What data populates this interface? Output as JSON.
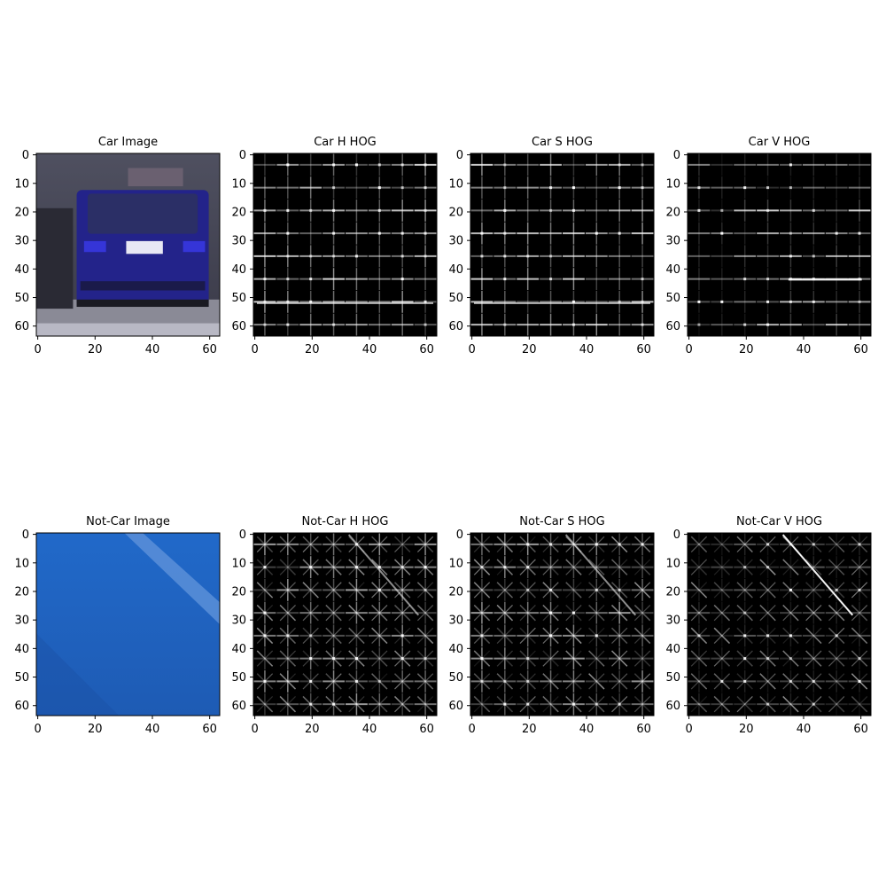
{
  "chart_data": [
    {
      "type": "heatmap",
      "title": "Car Image",
      "content": "car-image",
      "xticks": [
        "0",
        "20",
        "40",
        "60"
      ],
      "yticks": [
        "0",
        "10",
        "20",
        "30",
        "40",
        "50",
        "60"
      ],
      "xlim": [
        0,
        63
      ],
      "ylim": [
        63,
        0
      ]
    },
    {
      "type": "heatmap",
      "title": "Car H HOG",
      "content": "car-h-hog",
      "xticks": [
        "0",
        "20",
        "40",
        "60"
      ],
      "yticks": [
        "0",
        "10",
        "20",
        "30",
        "40",
        "50",
        "60"
      ],
      "xlim": [
        0,
        63
      ],
      "ylim": [
        63,
        0
      ]
    },
    {
      "type": "heatmap",
      "title": "Car S HOG",
      "content": "car-s-hog",
      "xticks": [
        "0",
        "20",
        "40",
        "60"
      ],
      "yticks": [
        "0",
        "10",
        "20",
        "30",
        "40",
        "50",
        "60"
      ],
      "xlim": [
        0,
        63
      ],
      "ylim": [
        63,
        0
      ]
    },
    {
      "type": "heatmap",
      "title": "Car V HOG",
      "content": "car-v-hog",
      "xticks": [
        "0",
        "20",
        "40",
        "60"
      ],
      "yticks": [
        "0",
        "10",
        "20",
        "30",
        "40",
        "50",
        "60"
      ],
      "xlim": [
        0,
        63
      ],
      "ylim": [
        63,
        0
      ]
    },
    {
      "type": "heatmap",
      "title": "Not-Car Image",
      "content": "notcar-image",
      "xticks": [
        "0",
        "20",
        "40",
        "60"
      ],
      "yticks": [
        "0",
        "10",
        "20",
        "30",
        "40",
        "50",
        "60"
      ],
      "xlim": [
        0,
        63
      ],
      "ylim": [
        63,
        0
      ]
    },
    {
      "type": "heatmap",
      "title": "Not-Car H  HOG",
      "content": "notcar-h-hog",
      "xticks": [
        "0",
        "20",
        "40",
        "60"
      ],
      "yticks": [
        "0",
        "10",
        "20",
        "30",
        "40",
        "50",
        "60"
      ],
      "xlim": [
        0,
        63
      ],
      "ylim": [
        63,
        0
      ]
    },
    {
      "type": "heatmap",
      "title": "Not-Car S  HOG",
      "content": "notcar-s-hog",
      "xticks": [
        "0",
        "20",
        "40",
        "60"
      ],
      "yticks": [
        "0",
        "10",
        "20",
        "30",
        "40",
        "50",
        "60"
      ],
      "xlim": [
        0,
        63
      ],
      "ylim": [
        63,
        0
      ]
    },
    {
      "type": "heatmap",
      "title": "Not-Car V  HOG",
      "content": "notcar-v-hog",
      "xticks": [
        "0",
        "20",
        "40",
        "60"
      ],
      "yticks": [
        "0",
        "10",
        "20",
        "30",
        "40",
        "50",
        "60"
      ],
      "xlim": [
        0,
        63
      ],
      "ylim": [
        63,
        0
      ]
    }
  ],
  "colors": {
    "car_body": "#23238a",
    "road_blue": "#1c5fc4",
    "hog_background": "#000000",
    "hog_stroke": "#ffffff",
    "axis": "#000000"
  }
}
